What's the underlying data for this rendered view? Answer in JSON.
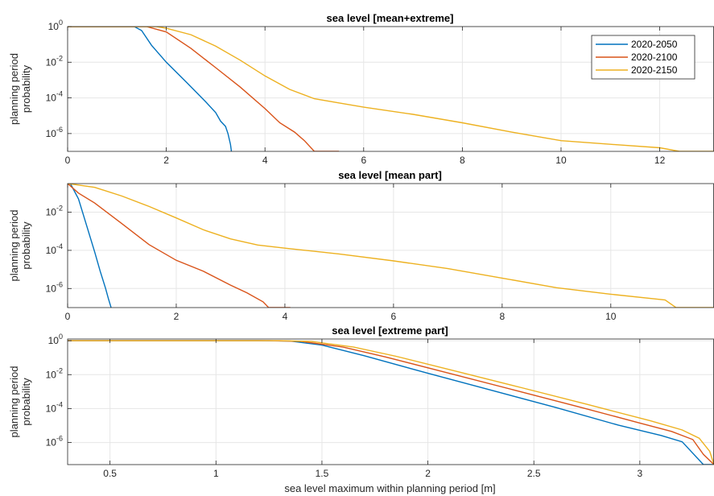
{
  "chart_data": [
    {
      "type": "line",
      "title": "sea level [mean+extreme]",
      "xlabel": "",
      "ylabel": [
        "planning period",
        "probability"
      ],
      "xlim": [
        0,
        13.1
      ],
      "ylog_range": [
        -7,
        0
      ],
      "y_scale": "log",
      "grid": true,
      "xticks": [
        0,
        2,
        4,
        6,
        8,
        10,
        12
      ],
      "yticks": [
        {
          "base": "10",
          "exp": "0"
        },
        {
          "base": "10",
          "exp": "-2"
        },
        {
          "base": "10",
          "exp": "-4"
        },
        {
          "base": "10",
          "exp": "-6"
        }
      ],
      "legend": {
        "placement": "top-right",
        "entries": [
          "2020-2050",
          "2020-2100",
          "2020-2150"
        ]
      },
      "series": [
        {
          "name": "2020-2050",
          "color": "#0072BD",
          "x": [
            0,
            1.35,
            1.5,
            1.7,
            2,
            2.4,
            2.8,
            3.0,
            3.1,
            3.2,
            3.25,
            3.3,
            3.32
          ],
          "y": [
            1,
            1,
            0.6,
            0.09,
            0.01,
            0.0008,
            6e-05,
            1.5e-05,
            5e-06,
            2.5e-06,
            1e-06,
            2.5e-07,
            1e-07
          ]
        },
        {
          "name": "2020-2100",
          "color": "#D95319",
          "x": [
            0,
            1.6,
            2,
            2.5,
            3,
            3.5,
            4,
            4.3,
            4.6,
            4.8,
            5.0,
            5.5
          ],
          "y": [
            1,
            1,
            0.5,
            0.06,
            0.005,
            0.0004,
            2.5e-05,
            4e-06,
            1.2e-06,
            4e-07,
            1e-07,
            1e-07
          ]
        },
        {
          "name": "2020-2150",
          "color": "#EDB120",
          "x": [
            0,
            1.8,
            2,
            2.5,
            3,
            3.5,
            4,
            4.5,
            5,
            6,
            7,
            8,
            9,
            10,
            11,
            12,
            12.4,
            13.1
          ],
          "y": [
            1,
            1,
            0.8,
            0.35,
            0.08,
            0.013,
            0.0017,
            0.0003,
            9e-05,
            3e-05,
            1.2e-05,
            4e-06,
            1.2e-06,
            4e-07,
            2.5e-07,
            1.6e-07,
            1e-07,
            1e-07
          ]
        }
      ]
    },
    {
      "type": "line",
      "title": "sea level [mean part]",
      "xlabel": "",
      "ylabel": [
        "planning period",
        "probability"
      ],
      "xlim": [
        0,
        11.9
      ],
      "ylog_range": [
        -7,
        -0.5
      ],
      "y_scale": "log",
      "grid": true,
      "xticks": [
        0,
        2,
        4,
        6,
        8,
        10
      ],
      "yticks": [
        {
          "base": "10",
          "exp": "-2"
        },
        {
          "base": "10",
          "exp": "-4"
        },
        {
          "base": "10",
          "exp": "-6"
        }
      ],
      "series": [
        {
          "name": "2020-2050",
          "color": "#0072BD",
          "x": [
            0,
            0.05,
            0.2,
            0.35,
            0.5,
            0.6,
            0.7,
            0.75,
            0.8
          ],
          "y": [
            0.32,
            0.32,
            0.05,
            0.002,
            8e-05,
            8e-06,
            1e-06,
            3e-07,
            1e-07
          ]
        },
        {
          "name": "2020-2100",
          "color": "#D95319",
          "x": [
            0,
            0.2,
            0.5,
            1,
            1.5,
            2,
            2.5,
            3,
            3.3,
            3.6,
            3.7,
            4.1
          ],
          "y": [
            0.32,
            0.1,
            0.03,
            0.0025,
            0.0002,
            3e-05,
            8e-06,
            1.5e-06,
            6e-07,
            2e-07,
            1e-07,
            1e-07
          ]
        },
        {
          "name": "2020-2150",
          "color": "#EDB120",
          "x": [
            0,
            0.5,
            1,
            1.5,
            2,
            2.5,
            3,
            3.5,
            4,
            5,
            6,
            7,
            8,
            9,
            10,
            11,
            11.2,
            11.9
          ],
          "y": [
            0.32,
            0.2,
            0.07,
            0.02,
            0.005,
            0.0012,
            0.0004,
            0.00019,
            0.00013,
            6.5e-05,
            2.8e-05,
            1.1e-05,
            3.5e-06,
            1.1e-06,
            5e-07,
            2.5e-07,
            1e-07,
            1e-07
          ]
        }
      ]
    },
    {
      "type": "line",
      "title": "sea level [extreme part]",
      "xlabel": "sea level maximum within planning period [m]",
      "ylabel": [
        "planning period",
        "probability"
      ],
      "xlim": [
        0.3,
        3.35
      ],
      "ylog_range": [
        -7.3,
        0.1
      ],
      "y_scale": "log",
      "grid": true,
      "xticks": [
        0.5,
        1,
        1.5,
        2,
        2.5,
        3
      ],
      "xtick_labels": [
        "0.5",
        "1",
        "1.5",
        "2",
        "2.5",
        "3"
      ],
      "yticks": [
        {
          "base": "10",
          "exp": "0"
        },
        {
          "base": "10",
          "exp": "-2"
        },
        {
          "base": "10",
          "exp": "-4"
        },
        {
          "base": "10",
          "exp": "-6"
        }
      ],
      "series": [
        {
          "name": "2020-2050",
          "color": "#0072BD",
          "x": [
            0.3,
            1.2,
            1.35,
            1.5,
            1.7,
            2,
            2.3,
            2.6,
            2.9,
            3.1,
            3.2,
            3.3,
            3.35
          ],
          "y": [
            1,
            1,
            0.95,
            0.55,
            0.13,
            0.012,
            0.0012,
            0.00012,
            1.05e-05,
            2.6e-06,
            1.1e-06,
            5e-08,
            5e-08
          ]
        },
        {
          "name": "2020-2100",
          "color": "#D95319",
          "x": [
            0.3,
            1.25,
            1.4,
            1.6,
            1.8,
            2.1,
            2.4,
            2.7,
            3.0,
            3.15,
            3.25,
            3.3,
            3.35
          ],
          "y": [
            1,
            1,
            0.92,
            0.42,
            0.11,
            0.012,
            0.0013,
            0.00014,
            1.4e-05,
            4.5e-06,
            1.5e-06,
            2e-07,
            5e-08
          ]
        },
        {
          "name": "2020-2150",
          "color": "#EDB120",
          "x": [
            0.3,
            1.3,
            1.45,
            1.65,
            1.85,
            2.15,
            2.45,
            2.75,
            3.05,
            3.2,
            3.28,
            3.33,
            3.35
          ],
          "y": [
            1,
            1,
            0.9,
            0.42,
            0.12,
            0.014,
            0.0016,
            0.00018,
            1.9e-05,
            5.5e-06,
            1.8e-06,
            3e-07,
            5e-08
          ]
        }
      ]
    }
  ]
}
